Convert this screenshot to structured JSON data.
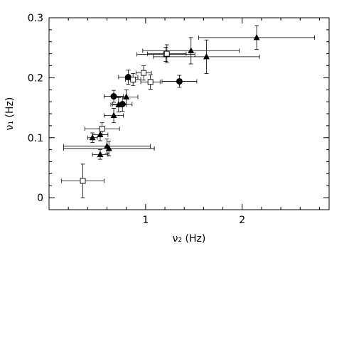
{
  "chart_data": {
    "type": "scatter",
    "xlabel": "ν₂ (Hz)",
    "ylabel": "ν₁ (Hz)",
    "xlim": [
      0,
      2.9
    ],
    "ylim": [
      -0.02,
      0.3
    ],
    "xticks": [
      1,
      2
    ],
    "xtick_labels": [
      "1",
      "2"
    ],
    "yticks": [
      0,
      0.1,
      0.2,
      0.3
    ],
    "ytick_labels": [
      "0",
      "0.1",
      "0.2",
      "0.3"
    ],
    "grid": false,
    "legend": "none",
    "series": [
      {
        "marker": "triangle",
        "points": [
          {
            "x": 0.45,
            "y": 0.1,
            "xerr": 0.05,
            "yerr": 0.008
          },
          {
            "x": 0.53,
            "y": 0.105,
            "xerr": 0.08,
            "yerr": 0.01
          },
          {
            "x": 0.53,
            "y": 0.072,
            "xerr": 0.08,
            "yerr": 0.008
          },
          {
            "x": 0.6,
            "y": 0.086,
            "xerr": 0.45,
            "yerr": 0.012
          },
          {
            "x": 0.62,
            "y": 0.082,
            "xerr": 0.47,
            "yerr": 0.012
          },
          {
            "x": 0.67,
            "y": 0.137,
            "xerr": 0.1,
            "yerr": 0.012
          },
          {
            "x": 0.72,
            "y": 0.155,
            "xerr": 0.08,
            "yerr": 0.012
          },
          {
            "x": 0.8,
            "y": 0.168,
            "xerr": 0.12,
            "yerr": 0.012
          },
          {
            "x": 1.47,
            "y": 0.245,
            "xerr": 0.5,
            "yerr": 0.022
          },
          {
            "x": 1.63,
            "y": 0.235,
            "xerr": 0.55,
            "yerr": 0.028
          },
          {
            "x": 2.15,
            "y": 0.267,
            "xerr": 0.6,
            "yerr": 0.02
          }
        ]
      },
      {
        "marker": "filled-circle",
        "points": [
          {
            "x": 0.67,
            "y": 0.169,
            "xerr": 0.1,
            "yerr": 0.01
          },
          {
            "x": 0.76,
            "y": 0.156,
            "xerr": 0.1,
            "yerr": 0.012
          },
          {
            "x": 0.82,
            "y": 0.201,
            "xerr": 0.1,
            "yerr": 0.012
          },
          {
            "x": 1.35,
            "y": 0.194,
            "xerr": 0.18,
            "yerr": 0.01
          }
        ]
      },
      {
        "marker": "open-square",
        "points": [
          {
            "x": 0.35,
            "y": 0.028,
            "xerr": 0.22,
            "yerr": 0.028
          },
          {
            "x": 0.55,
            "y": 0.115,
            "xerr": 0.18,
            "yerr": 0.01
          },
          {
            "x": 0.87,
            "y": 0.197,
            "xerr": 0.08,
            "yerr": 0.01
          },
          {
            "x": 0.98,
            "y": 0.208,
            "xerr": 0.08,
            "yerr": 0.012
          },
          {
            "x": 1.05,
            "y": 0.193,
            "xerr": 0.1,
            "yerr": 0.012
          },
          {
            "x": 1.21,
            "y": 0.239,
            "xerr": 0.3,
            "yerr": 0.012
          },
          {
            "x": 1.22,
            "y": 0.24,
            "xerr": 0.2,
            "yerr": 0.015
          }
        ]
      }
    ]
  }
}
